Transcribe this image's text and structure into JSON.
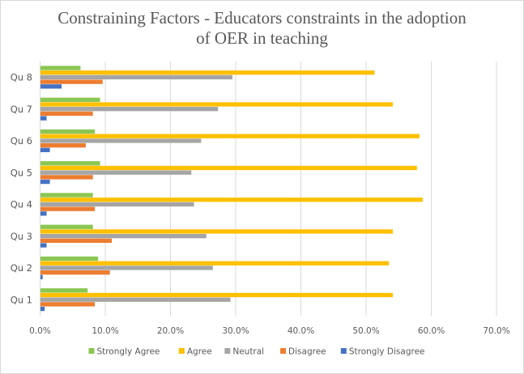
{
  "chart_data": {
    "type": "bar",
    "orientation": "horizontal",
    "title": "Constraining Factors - Educators constraints in the adoption of OER in teaching",
    "title_lines": [
      "Constraining Factors - Educators constraints in the adoption",
      "of OER in teaching"
    ],
    "xlabel": "",
    "ylabel": "",
    "categories": [
      "Qu 1",
      "Qu 2",
      "Qu 3",
      "Qu 4",
      "Qu 5",
      "Qu 6",
      "Qu 7",
      "Qu 8"
    ],
    "series": [
      {
        "name": "Strongly Agree",
        "color": "#8BC752",
        "values": [
          7.3,
          8.9,
          8.1,
          8.1,
          9.2,
          8.4,
          9.2,
          6.2
        ]
      },
      {
        "name": "Agree",
        "color": "#FFC000",
        "values": [
          54.1,
          53.5,
          54.1,
          58.7,
          57.8,
          58.2,
          54.1,
          51.3
        ]
      },
      {
        "name": "Neutral",
        "color": "#A5A5A5",
        "values": [
          29.2,
          26.5,
          25.5,
          23.6,
          23.2,
          24.7,
          27.3,
          29.5
        ]
      },
      {
        "name": "Disagree",
        "color": "#ED7D31",
        "values": [
          8.4,
          10.7,
          11.0,
          8.4,
          8.1,
          7.0,
          8.1,
          9.6
        ]
      },
      {
        "name": "Strongly Disagree",
        "color": "#4472C4",
        "values": [
          0.7,
          0.4,
          1.0,
          1.0,
          1.5,
          1.5,
          1.0,
          3.3
        ]
      }
    ],
    "value_unit": "percent",
    "xlim": [
      0,
      70
    ],
    "xticks": [
      0,
      10,
      20,
      30,
      40,
      50,
      60,
      70
    ],
    "xtick_labels": [
      "0.0%",
      "10.0%",
      "20.0%",
      "30.0%",
      "40.0%",
      "50.0%",
      "60.0%",
      "70.0%"
    ],
    "grid": true,
    "legend_position": "bottom"
  }
}
